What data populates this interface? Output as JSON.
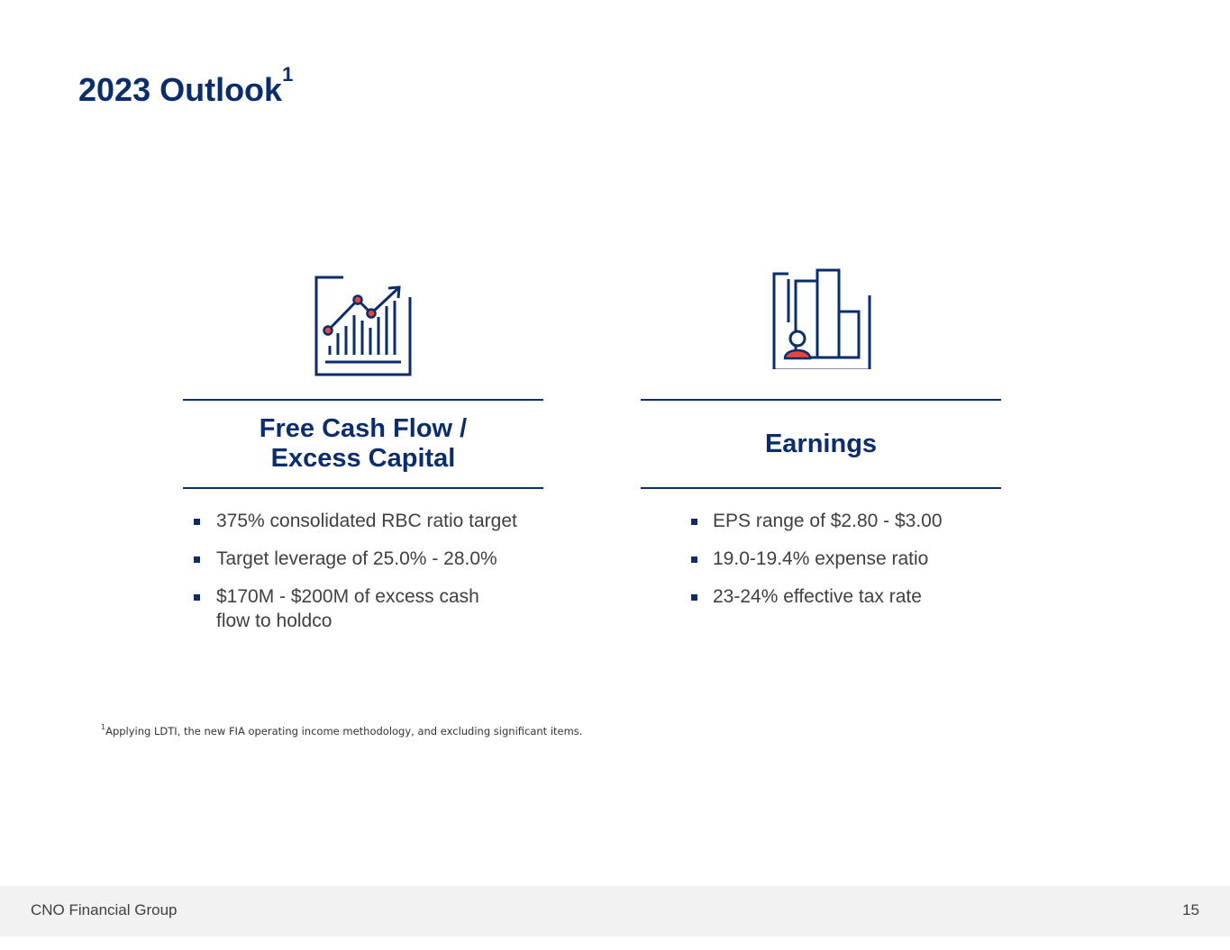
{
  "slide": {
    "title": "2023 Outlook",
    "title_superscript": "1"
  },
  "columns": [
    {
      "icon": "line-chart-icon",
      "heading_line1": "Free Cash Flow /",
      "heading_line2": "Excess Capital",
      "bullets": [
        "375% consolidated RBC ratio target",
        "Target leverage of 25.0% - 28.0%",
        "$170M - $200M of excess cash flow to holdco"
      ]
    },
    {
      "icon": "bar-chart-person-icon",
      "heading_line1": "Earnings",
      "bullets": [
        "EPS range of $2.80 - $3.00",
        "19.0-19.4% expense ratio",
        "23-24% effective tax rate"
      ]
    }
  ],
  "footnote": {
    "marker": "1",
    "text": "Applying LDTI, the new FIA operating income methodology, and excluding significant items."
  },
  "footer": {
    "company": "CNO Financial Group",
    "page_number": "15"
  },
  "colors": {
    "navy": "#0b2d6b",
    "accent_red": "#e8453c",
    "body_text": "#404040",
    "footer_bg": "#f2f2f2"
  }
}
